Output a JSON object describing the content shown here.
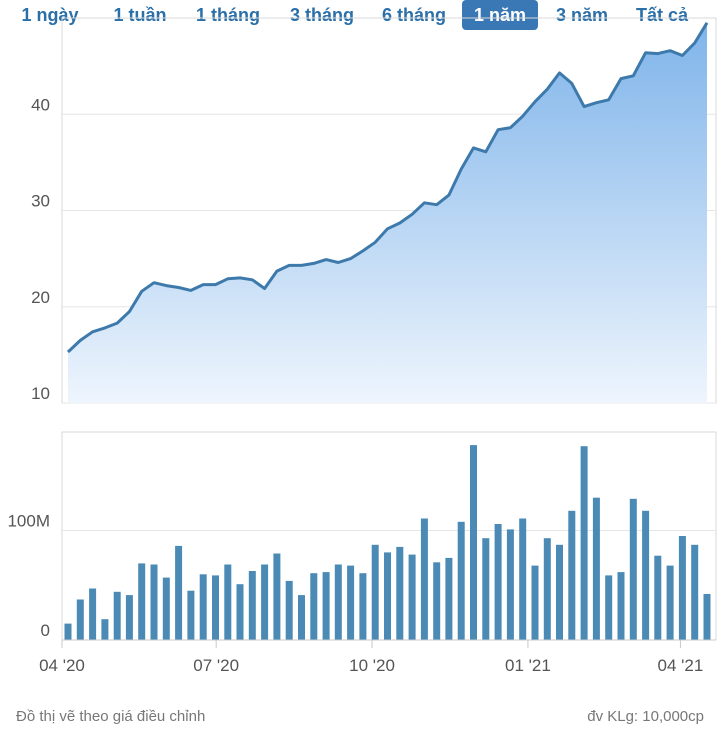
{
  "tabs": [
    {
      "label": "1 ngày",
      "active": false
    },
    {
      "label": "1 tuần",
      "active": false
    },
    {
      "label": "1 tháng",
      "active": false
    },
    {
      "label": "3 tháng",
      "active": false
    },
    {
      "label": "6 tháng",
      "active": false
    },
    {
      "label": "1 năm",
      "active": true
    },
    {
      "label": "3 năm",
      "active": false
    },
    {
      "label": "Tất cả",
      "active": false
    }
  ],
  "colors": {
    "line": "#3d7aab",
    "area_top": "#7fb4ea",
    "area_bottom": "#eef5fd",
    "bar": "#4a8ab5",
    "grid": "#e6e6e6",
    "active_tab": "#3a78b5",
    "tab_text": "#2a6fa8"
  },
  "footer": {
    "note": "Đồ thị vẽ theo giá điều chỉnh",
    "unit": "đv KLg: 10,000cp"
  },
  "chart_data": [
    {
      "type": "area",
      "ylim": [
        10,
        50
      ],
      "yticks": [
        10,
        20,
        30,
        40
      ],
      "ytick_labels": [
        "10",
        "20",
        "30",
        "40"
      ],
      "grid": true,
      "xlim": [
        "2020-04-01",
        "2021-04-22"
      ],
      "values": [
        15.3,
        16.5,
        17.4,
        17.8,
        18.3,
        19.5,
        21.6,
        22.5,
        22.2,
        22.0,
        21.7,
        22.3,
        22.3,
        22.9,
        23.0,
        22.8,
        21.9,
        23.7,
        24.3,
        24.3,
        24.5,
        24.9,
        24.6,
        25.0,
        25.8,
        26.7,
        28.1,
        28.7,
        29.6,
        30.8,
        30.6,
        31.6,
        34.3,
        36.5,
        36.1,
        38.4,
        38.6,
        39.8,
        41.3,
        42.6,
        44.3,
        43.2,
        40.8,
        41.2,
        41.5,
        43.7,
        44.0,
        46.4,
        46.3,
        46.6,
        46.1,
        47.4,
        49.5
      ]
    },
    {
      "type": "bar",
      "ylim": [
        0,
        190
      ],
      "yticks": [
        0,
        100
      ],
      "ytick_labels": [
        "0",
        "100M"
      ],
      "xlim": [
        "2020-04-01",
        "2021-04-22"
      ],
      "xtick_dates": [
        "2020-04-01",
        "2020-07-01",
        "2020-10-01",
        "2021-01-01",
        "2021-04-01"
      ],
      "xtick_labels": [
        "04 '20",
        "07 '20",
        "10 '20",
        "01 '21",
        "04 '21"
      ],
      "values": [
        15,
        37,
        47,
        19,
        44,
        41,
        70,
        69,
        57,
        86,
        45,
        60,
        59,
        69,
        51,
        63,
        69,
        79,
        54,
        41,
        61,
        62,
        69,
        68,
        61,
        87,
        80,
        85,
        78,
        111,
        71,
        75,
        108,
        178,
        93,
        106,
        101,
        111,
        68,
        93,
        87,
        118,
        177,
        130,
        59,
        62,
        129,
        118,
        77,
        68,
        95,
        87,
        42
      ]
    }
  ]
}
